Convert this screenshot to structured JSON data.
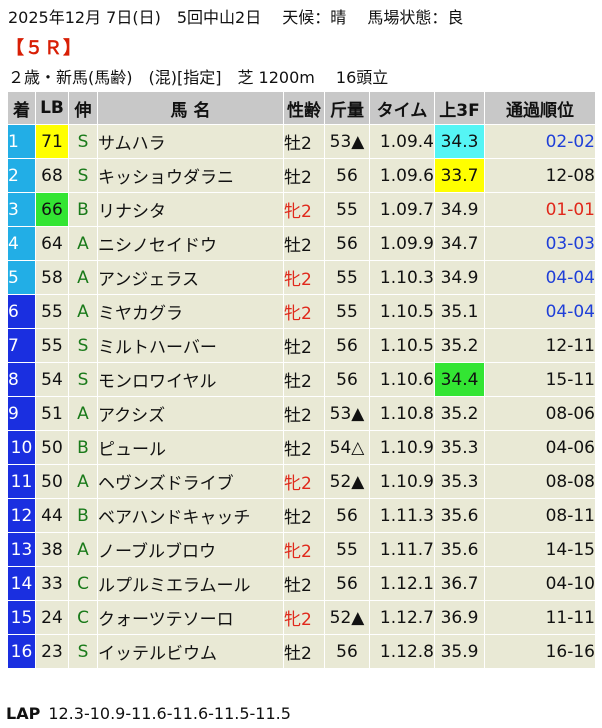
{
  "header": {
    "line1": "2025年12月 7日(日)　5回中山2日　 天候：晴　 馬場状態：良",
    "race": "【５Ｒ】",
    "line3": "２歳・新馬(馬齢)　(混)[指定]　芝 1200m　 16頭立"
  },
  "columns": [
    "着",
    "LB",
    "伸",
    "馬 名",
    "性齢",
    "斤量",
    "タイム",
    "上3F",
    "通過順位"
  ],
  "rows": [
    {
      "pos": "1",
      "lb": "71",
      "pace": "S",
      "name": "サムハラ",
      "sex": "牡2",
      "wt": "53▲",
      "time": "1.09.4",
      "f3": "34.3",
      "pass": "02-02"
    },
    {
      "pos": "2",
      "lb": "68",
      "pace": "S",
      "name": "キッショウダラニ",
      "sex": "牡2",
      "wt": "56",
      "time": "1.09.6",
      "f3": "33.7",
      "pass": "12-08"
    },
    {
      "pos": "3",
      "lb": "66",
      "pace": "B",
      "name": "リナシタ",
      "sex": "牝2",
      "wt": "55",
      "time": "1.09.7",
      "f3": "34.9",
      "pass": "01-01"
    },
    {
      "pos": "4",
      "lb": "64",
      "pace": "A",
      "name": "ニシノセイドウ",
      "sex": "牡2",
      "wt": "56",
      "time": "1.09.9",
      "f3": "34.7",
      "pass": "03-03"
    },
    {
      "pos": "5",
      "lb": "58",
      "pace": "A",
      "name": "アンジェラス",
      "sex": "牝2",
      "wt": "55",
      "time": "1.10.3",
      "f3": "34.9",
      "pass": "04-04"
    },
    {
      "pos": "6",
      "lb": "55",
      "pace": "A",
      "name": "ミヤカグラ",
      "sex": "牝2",
      "wt": "55",
      "time": "1.10.5",
      "f3": "35.1",
      "pass": "04-04"
    },
    {
      "pos": "7",
      "lb": "55",
      "pace": "S",
      "name": "ミルトハーバー",
      "sex": "牡2",
      "wt": "56",
      "time": "1.10.5",
      "f3": "35.2",
      "pass": "12-11"
    },
    {
      "pos": "8",
      "lb": "54",
      "pace": "S",
      "name": "モンロワイヤル",
      "sex": "牡2",
      "wt": "56",
      "time": "1.10.6",
      "f3": "34.4",
      "pass": "15-11"
    },
    {
      "pos": "9",
      "lb": "51",
      "pace": "A",
      "name": "アクシズ",
      "sex": "牡2",
      "wt": "53▲",
      "time": "1.10.8",
      "f3": "35.2",
      "pass": "08-06"
    },
    {
      "pos": "10",
      "lb": "50",
      "pace": "B",
      "name": "ピュール",
      "sex": "牡2",
      "wt": "54△",
      "time": "1.10.9",
      "f3": "35.3",
      "pass": "04-06"
    },
    {
      "pos": "11",
      "lb": "50",
      "pace": "A",
      "name": "ヘヴンズドライブ",
      "sex": "牝2",
      "wt": "52▲",
      "time": "1.10.9",
      "f3": "35.3",
      "pass": "08-08"
    },
    {
      "pos": "12",
      "lb": "44",
      "pace": "B",
      "name": "ベアハンドキャッチ",
      "sex": "牡2",
      "wt": "56",
      "time": "1.11.3",
      "f3": "35.6",
      "pass": "08-11"
    },
    {
      "pos": "13",
      "lb": "38",
      "pace": "A",
      "name": "ノーブルブロウ",
      "sex": "牝2",
      "wt": "55",
      "time": "1.11.7",
      "f3": "35.6",
      "pass": "14-15"
    },
    {
      "pos": "14",
      "lb": "33",
      "pace": "C",
      "name": "ルプルミエラムール",
      "sex": "牡2",
      "wt": "56",
      "time": "1.12.1",
      "f3": "36.7",
      "pass": "04-10"
    },
    {
      "pos": "15",
      "lb": "24",
      "pace": "C",
      "name": "クォーツテソーロ",
      "sex": "牝2",
      "wt": "52▲",
      "time": "1.12.7",
      "f3": "36.9",
      "pass": "11-11"
    },
    {
      "pos": "16",
      "lb": "23",
      "pace": "S",
      "name": "イッテルビウム",
      "sex": "牡2",
      "wt": "56",
      "time": "1.12.8",
      "f3": "35.9",
      "pass": "16-16"
    }
  ],
  "lap": {
    "label": "LAP",
    "value": "12.3-10.9-11.6-11.6-11.5-11.5"
  },
  "colors": {
    "pos_bg": "#1a2fe0",
    "lb_top": "#ffff00",
    "lb_third": "#33e533",
    "f3_best": "#55f5f5",
    "f3_second": "#ffff00",
    "f3_third": "#33e533",
    "female": "#e0281b",
    "pass_blue": "#1f3fd8",
    "pass_red": "#e0281b",
    "row_bg": "#e9e9d5",
    "head_bg": "#c8c8c8"
  }
}
